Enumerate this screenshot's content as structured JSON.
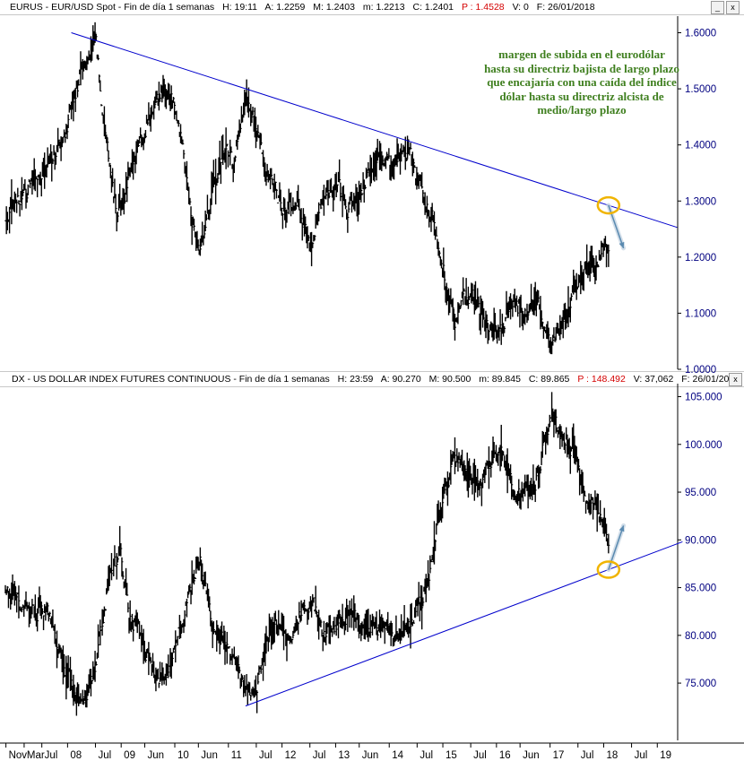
{
  "top_panel": {
    "header": {
      "title": "EURUS - EUR/USD Spot - Fin de día 1 semanas",
      "h": "H: 19:11",
      "a": "A: 1.2259",
      "m": "M: 1.2403",
      "mn": "m: 1.2213",
      "c": "C: 1.2401",
      "p": "P : 1.4528",
      "v": "V: 0",
      "f": "F: 26/01/2018"
    },
    "annotation": "margen de subida en el eurodólar hasta su directriz bajista de largo plazo que encajaría con una caída del índice dólar hasta su directriz alcista de medio/largo plazo"
  },
  "bottom_panel": {
    "header": {
      "title": "DX - US DOLLAR INDEX FUTURES CONTINUOUS - Fin de día 1 semanas",
      "h": "H: 23:59",
      "a": "A: 90.270",
      "m": "M: 90.500",
      "mn": "m: 89.845",
      "c": "C: 89.865",
      "p": "P : 148.492",
      "v": "V: 37,062",
      "f": "F: 26/01/20"
    }
  },
  "colors": {
    "price": "#000000",
    "trendline": "#0000cc",
    "highlight": "#f0b400",
    "projection": "#5a8ab0",
    "axis_text": "#000080",
    "annotation": "#3f7f1f"
  },
  "chart_data": [
    {
      "type": "line",
      "title": "EURUS - EUR/USD Spot",
      "ylim": [
        1.0,
        1.62
      ],
      "y_ticks": [
        "1.6000",
        "1.5000",
        "1.4000",
        "1.3000",
        "1.2000",
        "1.1000",
        "1.0000"
      ],
      "series": [
        {
          "x": [
            2006.82,
            2007.0,
            2007.3,
            2007.6,
            2007.9,
            2008.1,
            2008.3,
            2008.5,
            2008.7,
            2008.9,
            2009.1,
            2009.3,
            2009.6,
            2009.9,
            2010.1,
            2010.3,
            2010.45,
            2010.7,
            2010.9,
            2011.1,
            2011.3,
            2011.5,
            2011.7,
            2011.9,
            2012.1,
            2012.3,
            2012.55,
            2012.8,
            2013.0,
            2013.2,
            2013.5,
            2013.8,
            2014.0,
            2014.2,
            2014.35,
            2014.6,
            2014.8,
            2015.0,
            2015.2,
            2015.45,
            2015.7,
            2015.9,
            2016.1,
            2016.3,
            2016.5,
            2016.7,
            2016.9,
            2017.0,
            2017.2,
            2017.4,
            2017.6,
            2017.8,
            2018.0,
            2018.07
          ],
          "values": [
            1.27,
            1.3,
            1.33,
            1.36,
            1.42,
            1.48,
            1.56,
            1.59,
            1.4,
            1.27,
            1.31,
            1.4,
            1.47,
            1.5,
            1.4,
            1.27,
            1.21,
            1.34,
            1.39,
            1.37,
            1.47,
            1.43,
            1.35,
            1.3,
            1.3,
            1.29,
            1.22,
            1.31,
            1.33,
            1.29,
            1.32,
            1.37,
            1.37,
            1.39,
            1.39,
            1.33,
            1.26,
            1.17,
            1.07,
            1.13,
            1.11,
            1.08,
            1.09,
            1.13,
            1.11,
            1.12,
            1.07,
            1.04,
            1.07,
            1.14,
            1.18,
            1.17,
            1.22,
            1.24
          ]
        }
      ],
      "trendline": {
        "x": [
          2008.05,
          2019.35
        ],
        "values": [
          1.6,
          1.253
        ]
      },
      "highlight_x": 2018.07,
      "projection_to": {
        "x": 2018.35,
        "value": 1.216
      }
    },
    {
      "type": "line",
      "title": "DX - US DOLLAR INDEX FUTURES CONTINUOUS",
      "ylim": [
        69,
        105.8
      ],
      "y_ticks": [
        "105.000",
        "100.000",
        "95.000",
        "90.000",
        "85.000",
        "80.000",
        "75.000"
      ],
      "x_ticks": [
        {
          "t": 2006.83,
          "label": "Nov"
        },
        {
          "t": 2007.17,
          "label": "Mar"
        },
        {
          "t": 2007.5,
          "label": "Jul"
        },
        {
          "t": 2007.98,
          "label": "08"
        },
        {
          "t": 2008.5,
          "label": "Jul"
        },
        {
          "t": 2008.98,
          "label": "09"
        },
        {
          "t": 2009.42,
          "label": "Jun"
        },
        {
          "t": 2009.98,
          "label": "10"
        },
        {
          "t": 2010.42,
          "label": "Jun"
        },
        {
          "t": 2010.98,
          "label": "11"
        },
        {
          "t": 2011.5,
          "label": "Jul"
        },
        {
          "t": 2011.98,
          "label": "12"
        },
        {
          "t": 2012.5,
          "label": "Jul"
        },
        {
          "t": 2012.98,
          "label": "13"
        },
        {
          "t": 2013.42,
          "label": "Jun"
        },
        {
          "t": 2013.98,
          "label": "14"
        },
        {
          "t": 2014.5,
          "label": "Jul"
        },
        {
          "t": 2014.98,
          "label": "15"
        },
        {
          "t": 2015.5,
          "label": "Jul"
        },
        {
          "t": 2015.98,
          "label": "16"
        },
        {
          "t": 2016.42,
          "label": "Jun"
        },
        {
          "t": 2016.98,
          "label": "17"
        },
        {
          "t": 2017.5,
          "label": "Jul"
        },
        {
          "t": 2017.98,
          "label": "18"
        },
        {
          "t": 2018.5,
          "label": "Jul"
        },
        {
          "t": 2018.98,
          "label": "19"
        }
      ],
      "series": [
        {
          "x": [
            2006.82,
            2007.0,
            2007.3,
            2007.6,
            2007.9,
            2008.1,
            2008.3,
            2008.5,
            2008.75,
            2008.95,
            2009.1,
            2009.3,
            2009.5,
            2009.7,
            2009.9,
            2010.1,
            2010.3,
            2010.45,
            2010.7,
            2010.9,
            2011.1,
            2011.3,
            2011.5,
            2011.7,
            2011.9,
            2012.1,
            2012.3,
            2012.55,
            2012.8,
            2013.0,
            2013.2,
            2013.5,
            2013.8,
            2014.0,
            2014.2,
            2014.4,
            2014.6,
            2014.8,
            2015.0,
            2015.2,
            2015.45,
            2015.7,
            2015.9,
            2016.1,
            2016.3,
            2016.5,
            2016.7,
            2016.9,
            2017.0,
            2017.1,
            2017.3,
            2017.5,
            2017.7,
            2017.9,
            2018.07
          ],
          "values": [
            85.0,
            84.5,
            83.0,
            82.0,
            77.0,
            73.5,
            72.5,
            76.0,
            86.0,
            88.0,
            83.0,
            79.5,
            77.0,
            75.5,
            77.0,
            81.0,
            85.5,
            88.5,
            80.5,
            79.0,
            76.5,
            74.0,
            73.5,
            78.0,
            80.5,
            79.0,
            82.0,
            83.5,
            80.0,
            81.0,
            83.0,
            82.0,
            80.0,
            80.0,
            80.0,
            81.0,
            84.0,
            88.0,
            95.0,
            98.5,
            96.5,
            95.5,
            98.0,
            99.5,
            95.5,
            95.0,
            96.0,
            101.0,
            103.0,
            102.0,
            100.0,
            97.0,
            93.5,
            93.0,
            89.5
          ]
        }
      ],
      "trendline": {
        "x": [
          2011.3,
          2019.45
        ],
        "values": [
          72.6,
          89.8
        ]
      },
      "highlight_x": 2018.07,
      "projection_to": {
        "x": 2018.35,
        "value": 91.5
      }
    }
  ]
}
